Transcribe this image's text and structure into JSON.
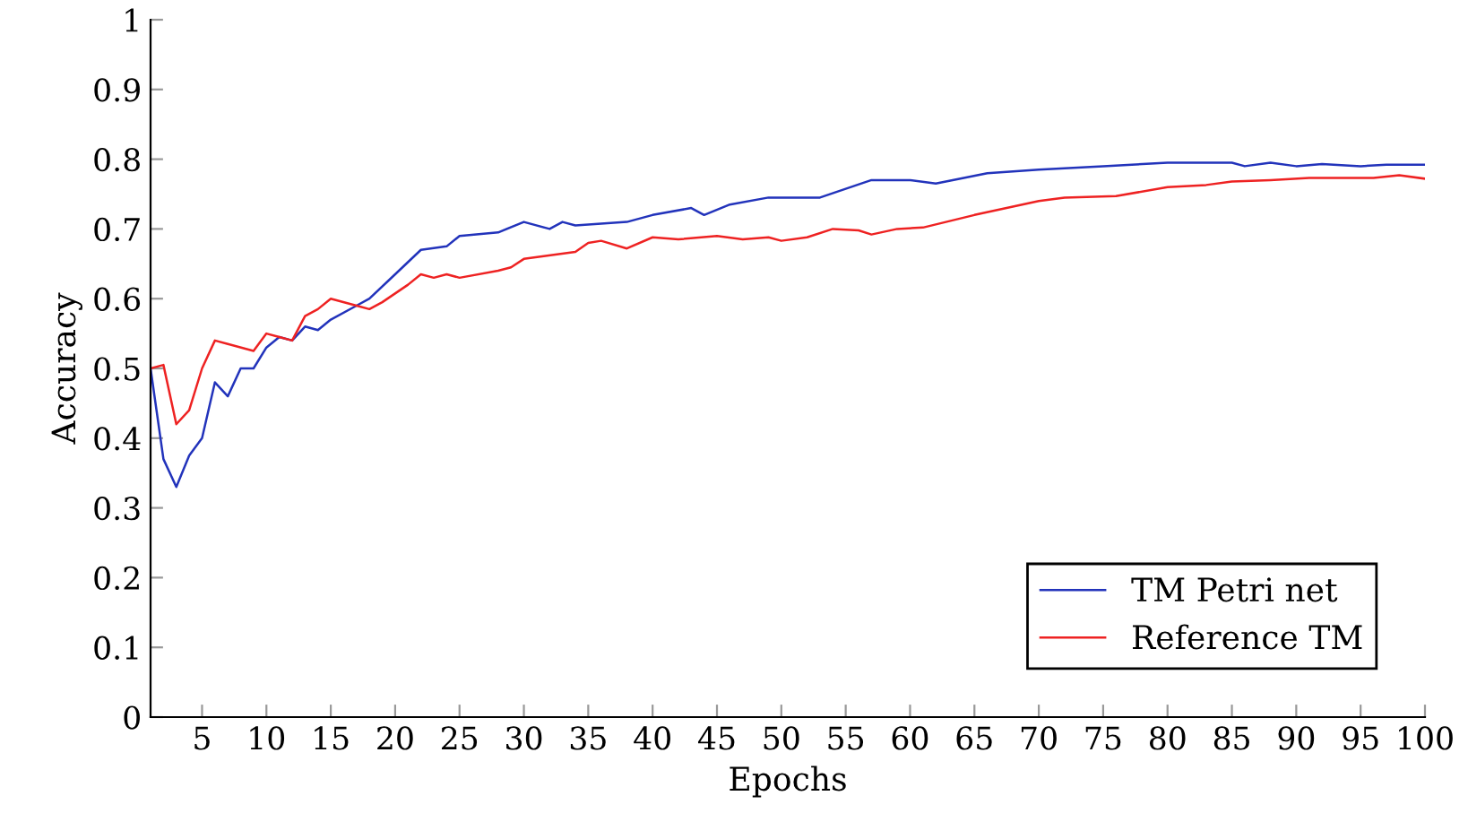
{
  "chart_data": {
    "type": "line",
    "xlabel": "Epochs",
    "ylabel": "Accuracy",
    "xlim": [
      1,
      100
    ],
    "xticks": [
      5,
      10,
      15,
      20,
      25,
      30,
      35,
      40,
      45,
      50,
      55,
      60,
      65,
      70,
      75,
      80,
      85,
      90,
      95,
      100
    ],
    "ylim": [
      0,
      1
    ],
    "yticks": [
      0,
      0.1,
      0.2,
      0.3,
      0.4,
      0.5,
      0.6,
      0.7,
      0.8,
      0.9,
      1
    ],
    "grid": false,
    "legend": "bottom right",
    "marker": "none",
    "line_style": "solid",
    "series": [
      {
        "name": "TM Petri net",
        "color": "#2233bb",
        "x": [
          1,
          2,
          3,
          4,
          5,
          6,
          7,
          8,
          9,
          10,
          11,
          12,
          13,
          14,
          15,
          17,
          18,
          20,
          22,
          24,
          25,
          28,
          30,
          32,
          33,
          34,
          38,
          40,
          43,
          44,
          46,
          49,
          53,
          57,
          60,
          62,
          66,
          70,
          75,
          80,
          85,
          86,
          88,
          90,
          92,
          95,
          97,
          100
        ],
        "values": [
          0.5,
          0.37,
          0.33,
          0.375,
          0.4,
          0.48,
          0.46,
          0.5,
          0.5,
          0.53,
          0.545,
          0.54,
          0.56,
          0.555,
          0.57,
          0.59,
          0.6,
          0.635,
          0.67,
          0.675,
          0.69,
          0.695,
          0.71,
          0.7,
          0.71,
          0.705,
          0.71,
          0.72,
          0.73,
          0.72,
          0.735,
          0.745,
          0.745,
          0.77,
          0.77,
          0.765,
          0.78,
          0.785,
          0.79,
          0.795,
          0.795,
          0.79,
          0.795,
          0.79,
          0.793,
          0.79,
          0.792,
          0.792
        ]
      },
      {
        "name": "Reference TM",
        "color": "#ee2222",
        "x": [
          1,
          2,
          3,
          4,
          5,
          6,
          7,
          9,
          10,
          11,
          12,
          13,
          14,
          15,
          17,
          18,
          19,
          21,
          22,
          23,
          24,
          25,
          28,
          29,
          30,
          34,
          35,
          36,
          38,
          40,
          42,
          45,
          47,
          49,
          50,
          52,
          54,
          56,
          57,
          59,
          61,
          65,
          70,
          72,
          76,
          80,
          83,
          85,
          88,
          91,
          96,
          98,
          100
        ],
        "values": [
          0.5,
          0.505,
          0.42,
          0.44,
          0.5,
          0.54,
          0.535,
          0.525,
          0.55,
          0.545,
          0.54,
          0.575,
          0.585,
          0.6,
          0.59,
          0.585,
          0.595,
          0.62,
          0.635,
          0.63,
          0.635,
          0.63,
          0.64,
          0.645,
          0.657,
          0.667,
          0.68,
          0.683,
          0.672,
          0.688,
          0.685,
          0.69,
          0.685,
          0.688,
          0.683,
          0.688,
          0.7,
          0.698,
          0.692,
          0.7,
          0.702,
          0.72,
          0.74,
          0.745,
          0.747,
          0.76,
          0.763,
          0.768,
          0.77,
          0.773,
          0.773,
          0.777,
          0.772
        ]
      }
    ]
  }
}
